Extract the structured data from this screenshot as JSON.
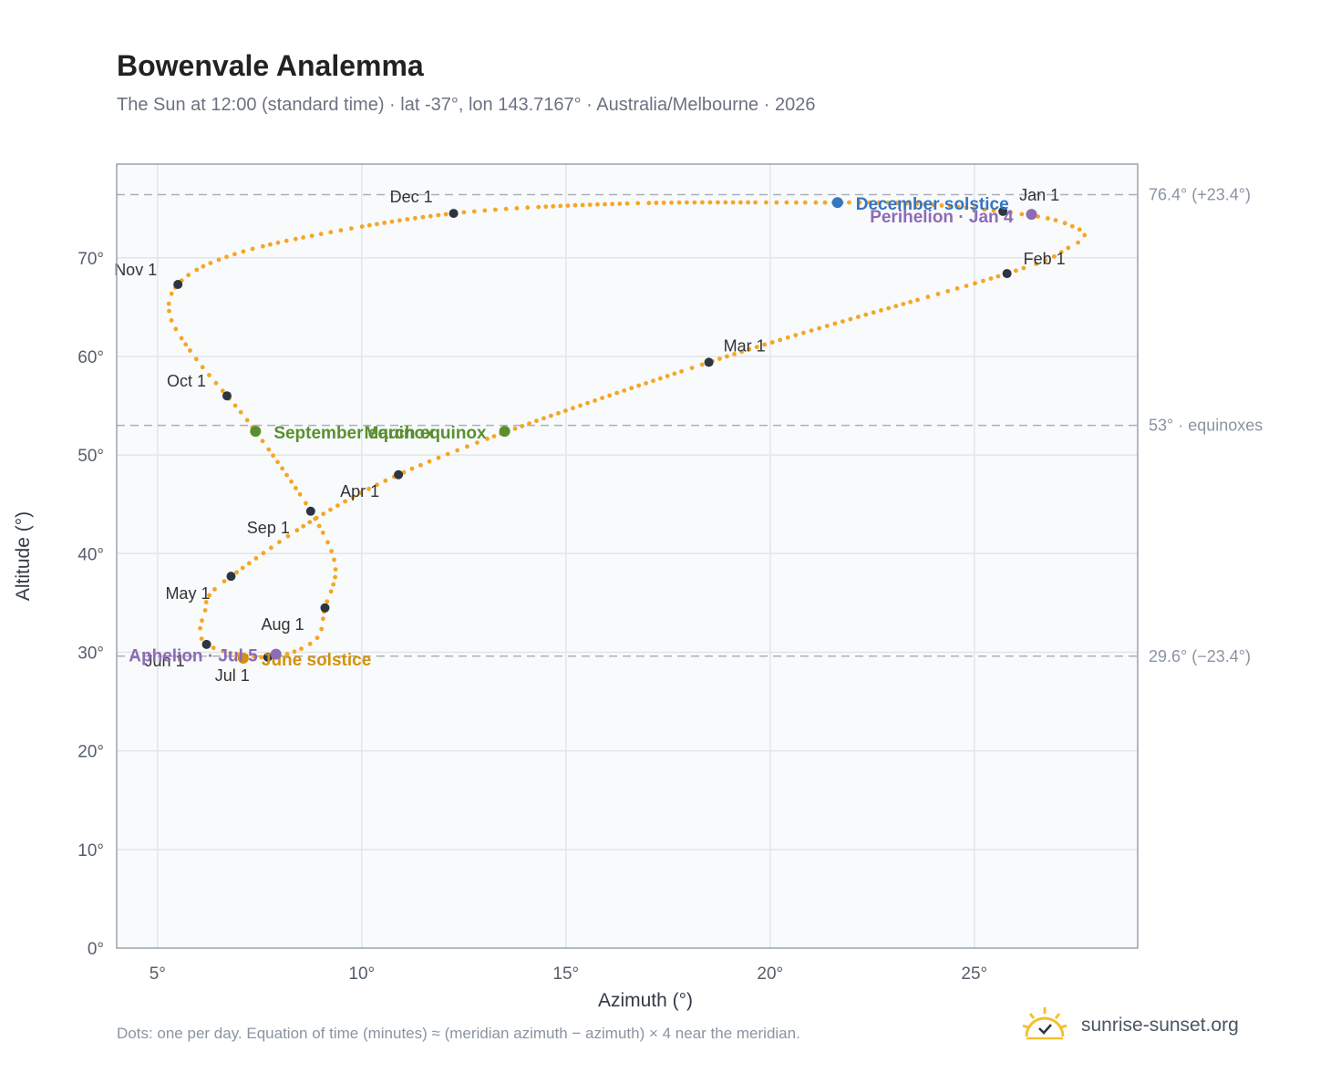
{
  "header": {
    "title": "Bowenvale Analemma",
    "subtitle": "The Sun at 12:00 (standard time) · lat -37°, lon 143.7167° · Australia/Melbourne · 2026"
  },
  "footer": {
    "note": "Dots: one per day. Equation of time (minutes) ≈ (meridian azimuth − azimuth) × 4 near the meridian.",
    "brand": "sunrise-sunset.org",
    "brand_icon": "sun-logo-icon"
  },
  "colors": {
    "analemma": "#f5a623",
    "month_marker": "#2d3540",
    "equinox": "#5a8f2e",
    "december_solstice": "#3575c2",
    "june_solstice": "#d4920b",
    "apsis": "#8e6bb5",
    "plot_bg": "#f8fafc",
    "grid": "#e2e6ea",
    "ref_line": "#a9b1ba"
  },
  "chart_data": {
    "type": "scatter",
    "xlabel": "Azimuth (°)",
    "ylabel": "Altitude (°)",
    "xlim": [
      4,
      29
    ],
    "ylim": [
      0,
      79.5
    ],
    "x_ticks": [
      5,
      10,
      15,
      20,
      25
    ],
    "x_tick_labels": [
      "5°",
      "10°",
      "15°",
      "20°",
      "25°"
    ],
    "y_ticks": [
      0,
      10,
      20,
      30,
      40,
      50,
      60,
      70
    ],
    "y_tick_labels": [
      "0°",
      "10°",
      "20°",
      "30°",
      "40°",
      "50°",
      "60°",
      "70°"
    ],
    "grid": true,
    "reference_lines": [
      {
        "y": 76.4,
        "label": "76.4° (+23.4°)"
      },
      {
        "y": 53,
        "label": "53° · equinoxes"
      },
      {
        "y": 29.6,
        "label": "29.6° (−23.4°)"
      }
    ],
    "month_markers": [
      {
        "label": "Jan 1",
        "x": 25.7,
        "y": 74.7
      },
      {
        "label": "Feb 1",
        "x": 25.8,
        "y": 68.4
      },
      {
        "label": "Mar 1",
        "x": 18.5,
        "y": 59.4
      },
      {
        "label": "Apr 1",
        "x": 10.9,
        "y": 48.0
      },
      {
        "label": "May 1",
        "x": 6.8,
        "y": 37.7
      },
      {
        "label": "Jun 1",
        "x": 6.2,
        "y": 30.8
      },
      {
        "label": "Jul 1",
        "x": 7.7,
        "y": 29.5
      },
      {
        "label": "Aug 1",
        "x": 9.1,
        "y": 34.5
      },
      {
        "label": "Sep 1",
        "x": 8.75,
        "y": 44.3
      },
      {
        "label": "Oct 1",
        "x": 6.7,
        "y": 56.0
      },
      {
        "label": "Nov 1",
        "x": 5.5,
        "y": 67.3
      },
      {
        "label": "Dec 1",
        "x": 12.25,
        "y": 74.5
      }
    ],
    "events": [
      {
        "label": "December solstice",
        "x": 21.65,
        "y": 75.6,
        "kind": "december_solstice"
      },
      {
        "label": "Perihelion · Jan 4",
        "x": 26.4,
        "y": 74.4,
        "kind": "apsis"
      },
      {
        "label": "March equinox",
        "x": 13.5,
        "y": 52.4,
        "kind": "equinox"
      },
      {
        "label": "September equinox",
        "x": 7.4,
        "y": 52.4,
        "kind": "equinox"
      },
      {
        "label": "June solstice",
        "x": 7.1,
        "y": 29.4,
        "kind": "june_solstice"
      },
      {
        "label": "Aphelion · Jul 5",
        "x": 7.9,
        "y": 29.8,
        "kind": "apsis"
      }
    ],
    "analemma_path": [
      {
        "x": 25.7,
        "y": 74.7
      },
      {
        "x": 26.8,
        "y": 74.0
      },
      {
        "x": 27.4,
        "y": 73.2
      },
      {
        "x": 27.7,
        "y": 72.3
      },
      {
        "x": 27.3,
        "y": 71.0
      },
      {
        "x": 25.8,
        "y": 68.4
      },
      {
        "x": 18.5,
        "y": 59.4
      },
      {
        "x": 10.9,
        "y": 48.0
      },
      {
        "x": 6.8,
        "y": 37.7
      },
      {
        "x": 6.15,
        "y": 34.0
      },
      {
        "x": 6.2,
        "y": 30.8
      },
      {
        "x": 7.7,
        "y": 29.5
      },
      {
        "x": 8.85,
        "y": 31.2
      },
      {
        "x": 9.1,
        "y": 34.5
      },
      {
        "x": 9.35,
        "y": 38.8
      },
      {
        "x": 8.75,
        "y": 44.3
      },
      {
        "x": 7.4,
        "y": 52.4
      },
      {
        "x": 6.7,
        "y": 56.0
      },
      {
        "x": 5.9,
        "y": 60.0
      },
      {
        "x": 5.3,
        "y": 64.2
      },
      {
        "x": 5.5,
        "y": 67.3
      },
      {
        "x": 6.5,
        "y": 69.8
      },
      {
        "x": 8.5,
        "y": 72.0
      },
      {
        "x": 12.25,
        "y": 74.5
      },
      {
        "x": 16.5,
        "y": 75.5
      },
      {
        "x": 21.0,
        "y": 75.6
      },
      {
        "x": 23.5,
        "y": 75.5
      },
      {
        "x": 25.7,
        "y": 74.7
      }
    ]
  }
}
